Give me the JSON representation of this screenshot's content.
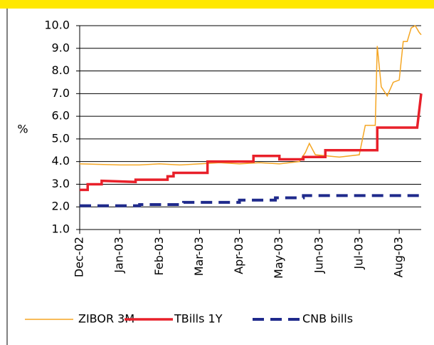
{
  "chart_data": {
    "type": "line",
    "ylabel": "%",
    "xlim": [
      0,
      8.55
    ],
    "xticks": [
      {
        "value": 0,
        "label": "Dec-02"
      },
      {
        "value": 1,
        "label": "Jan-03"
      },
      {
        "value": 2,
        "label": "Feb-03"
      },
      {
        "value": 3,
        "label": "Mar-03"
      },
      {
        "value": 4,
        "label": "Apr-03"
      },
      {
        "value": 5,
        "label": "May-03"
      },
      {
        "value": 6,
        "label": "Jun-03"
      },
      {
        "value": 7,
        "label": "Jul-03"
      },
      {
        "value": 8,
        "label": "Aug-03"
      }
    ],
    "ylim": [
      1,
      10
    ],
    "yticks": [
      {
        "value": 1,
        "label": "1.0"
      },
      {
        "value": 2,
        "label": "2.0"
      },
      {
        "value": 3,
        "label": "3.0"
      },
      {
        "value": 4,
        "label": "4.0"
      },
      {
        "value": 5,
        "label": "5.0"
      },
      {
        "value": 6,
        "label": "6.0"
      },
      {
        "value": 7,
        "label": "7.0"
      },
      {
        "value": 8,
        "label": "8.0"
      },
      {
        "value": 9,
        "label": "9.0"
      },
      {
        "value": 10,
        "label": "10.0"
      }
    ],
    "grid": true,
    "legend": "bottom",
    "series": [
      {
        "name": "ZIBOR 3M",
        "color": "#f5a623",
        "line_style": "solid",
        "x": [
          0,
          1,
          1.5,
          2,
          2.5,
          3,
          3.5,
          4,
          4.5,
          5,
          5.5,
          5.65,
          5.75,
          5.9,
          6.5,
          7.0,
          7.15,
          7.2,
          7.4,
          7.45,
          7.55,
          7.7,
          7.85,
          8.0,
          8.1,
          8.2,
          8.3,
          8.4,
          8.5,
          8.55
        ],
        "values": [
          3.9,
          3.85,
          3.85,
          3.9,
          3.85,
          3.9,
          3.95,
          3.9,
          3.95,
          3.9,
          4.0,
          4.4,
          4.8,
          4.3,
          4.2,
          4.3,
          5.6,
          5.6,
          5.6,
          9.1,
          7.3,
          6.9,
          7.5,
          7.6,
          9.3,
          9.3,
          9.9,
          10.0,
          9.7,
          9.6
        ]
      },
      {
        "name": "TBills 1Y",
        "color": "#e8202a",
        "line_style": "solid",
        "x": [
          0,
          0.2,
          0.2,
          0.55,
          0.55,
          1.4,
          1.4,
          2.2,
          2.2,
          2.35,
          2.35,
          3.2,
          3.2,
          4.35,
          4.35,
          5.0,
          5.0,
          5.6,
          5.6,
          6.15,
          6.15,
          7.45,
          7.45,
          8.45,
          8.55
        ],
        "values": [
          2.75,
          2.75,
          3.0,
          3.0,
          3.15,
          3.1,
          3.2,
          3.2,
          3.35,
          3.35,
          3.5,
          3.5,
          4.0,
          4.0,
          4.25,
          4.25,
          4.1,
          4.1,
          4.2,
          4.2,
          4.5,
          4.5,
          5.5,
          5.5,
          7.0
        ]
      },
      {
        "name": "CNB bills",
        "color": "#1f2a8c",
        "line_style": "dashed",
        "x": [
          0,
          1.5,
          1.5,
          2.6,
          2.6,
          4.0,
          4.0,
          4.9,
          4.9,
          5.6,
          5.6,
          8.55
        ],
        "values": [
          2.05,
          2.05,
          2.1,
          2.1,
          2.2,
          2.2,
          2.3,
          2.3,
          2.4,
          2.4,
          2.5,
          2.5
        ]
      }
    ]
  }
}
